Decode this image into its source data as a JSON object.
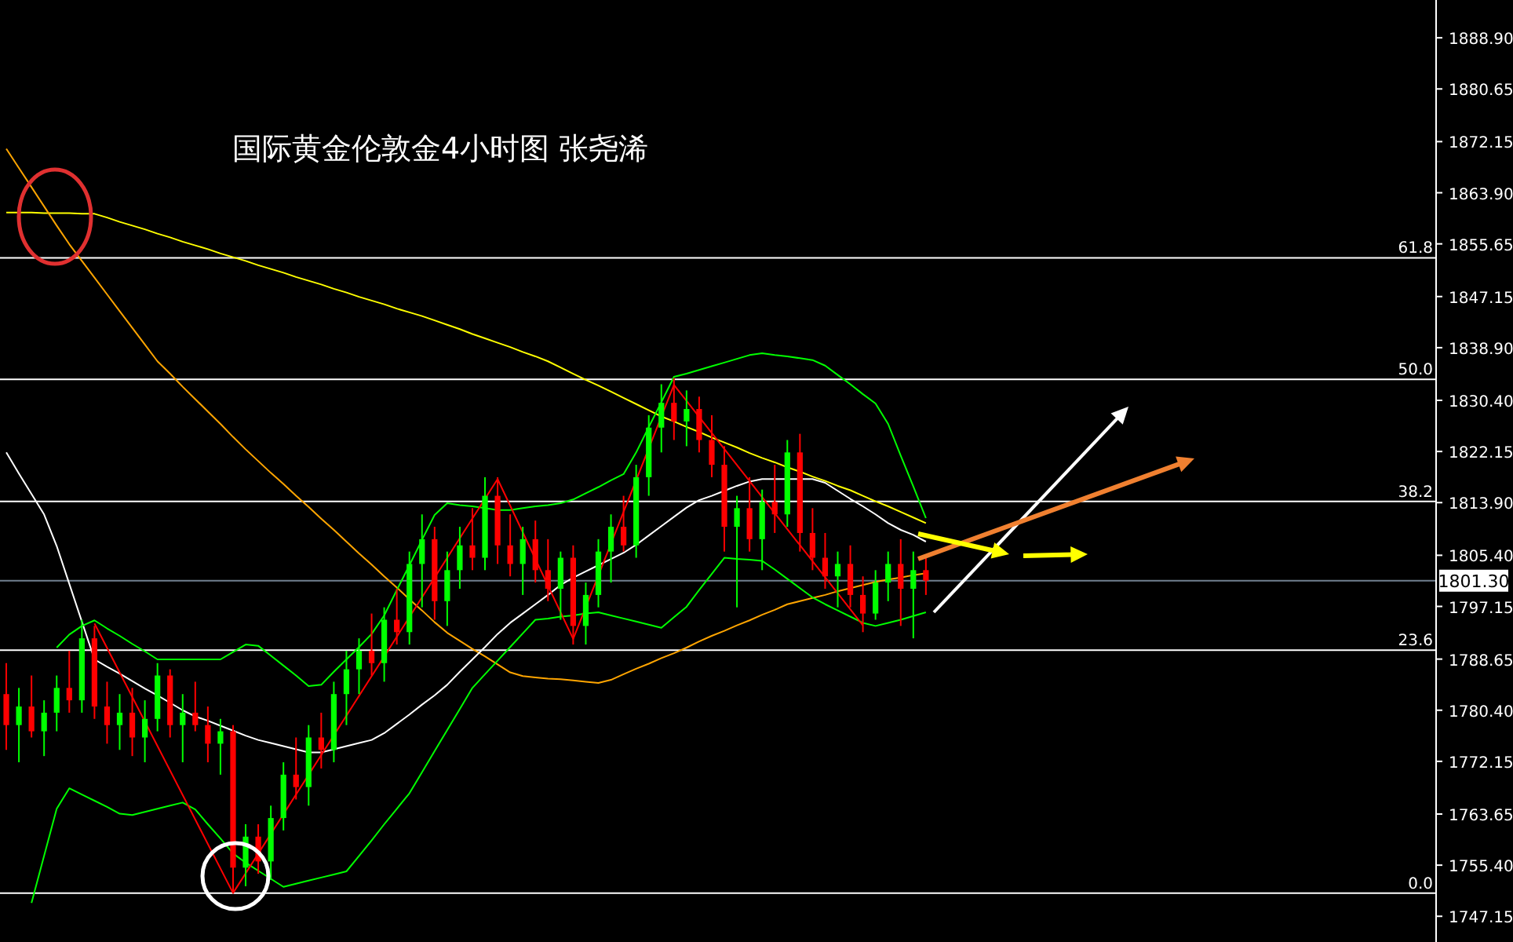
{
  "chart_data": {
    "type": "candlestick",
    "title": "国际黄金伦敦金4小时图  张尧浠",
    "categories": [
      null,
      null,
      null,
      null,
      null,
      null,
      null,
      null,
      null,
      null,
      null,
      null,
      null,
      null,
      null,
      null,
      null,
      null,
      null,
      null,
      null,
      null,
      null,
      null,
      null,
      null,
      null,
      null,
      null,
      null,
      null,
      null,
      null,
      null,
      null,
      null,
      null,
      null,
      null,
      null,
      null,
      null,
      null,
      null,
      null,
      null,
      null,
      null,
      null,
      null,
      null,
      null,
      null,
      null,
      null,
      null,
      null,
      null,
      null,
      null,
      null,
      null,
      null,
      null,
      null,
      null,
      null,
      null,
      null,
      null,
      null,
      null,
      null,
      null,
      null,
      null,
      null,
      null,
      null,
      null,
      null,
      null,
      null,
      null,
      null,
      null,
      null,
      null,
      null,
      null,
      null,
      null,
      null,
      null,
      null,
      null,
      null,
      null,
      null,
      null,
      null,
      null,
      null,
      null,
      null,
      null,
      null,
      null,
      null,
      null,
      null,
      null,
      null,
      null
    ],
    "ohlc": [
      [
        1783,
        1788,
        1774,
        1778
      ],
      [
        1778,
        1784,
        1772,
        1781
      ],
      [
        1781,
        1786,
        1776,
        1777
      ],
      [
        1777,
        1782,
        1773,
        1780
      ],
      [
        1780,
        1786,
        1777,
        1784
      ],
      [
        1784,
        1790,
        1780,
        1782
      ],
      [
        1782,
        1795,
        1780,
        1792
      ],
      [
        1792,
        1794,
        1779,
        1781
      ],
      [
        1781,
        1785,
        1775,
        1778
      ],
      [
        1778,
        1783,
        1774,
        1780
      ],
      [
        1780,
        1784,
        1773,
        1776
      ],
      [
        1776,
        1782,
        1772,
        1779
      ],
      [
        1779,
        1788,
        1777,
        1786
      ],
      [
        1786,
        1787,
        1776,
        1778
      ],
      [
        1778,
        1783,
        1772,
        1780
      ],
      [
        1780,
        1785,
        1777,
        1778
      ],
      [
        1778,
        1781,
        1772,
        1775
      ],
      [
        1775,
        1779,
        1770,
        1777
      ],
      [
        1777,
        1778,
        1751,
        1755
      ],
      [
        1755,
        1762,
        1752,
        1760
      ],
      [
        1760,
        1762,
        1754,
        1756
      ],
      [
        1756,
        1765,
        1753,
        1763
      ],
      [
        1763,
        1772,
        1761,
        1770
      ],
      [
        1770,
        1776,
        1766,
        1768
      ],
      [
        1768,
        1778,
        1765,
        1776
      ],
      [
        1776,
        1780,
        1771,
        1774
      ],
      [
        1774,
        1785,
        1772,
        1783
      ],
      [
        1783,
        1790,
        1778,
        1787
      ],
      [
        1787,
        1792,
        1783,
        1790
      ],
      [
        1790,
        1796,
        1786,
        1788
      ],
      [
        1788,
        1797,
        1785,
        1795
      ],
      [
        1795,
        1800,
        1791,
        1793
      ],
      [
        1793,
        1806,
        1791,
        1804
      ],
      [
        1804,
        1812,
        1797,
        1808
      ],
      [
        1808,
        1810,
        1795,
        1798
      ],
      [
        1798,
        1806,
        1794,
        1803
      ],
      [
        1803,
        1810,
        1800,
        1807
      ],
      [
        1807,
        1813,
        1803,
        1805
      ],
      [
        1805,
        1818,
        1803,
        1815
      ],
      [
        1815,
        1818,
        1804,
        1807
      ],
      [
        1807,
        1812,
        1802,
        1804
      ],
      [
        1804,
        1810,
        1799,
        1808
      ],
      [
        1808,
        1811,
        1801,
        1803
      ],
      [
        1803,
        1808,
        1798,
        1800
      ],
      [
        1800,
        1806,
        1795,
        1805
      ],
      [
        1805,
        1807,
        1791,
        1794
      ],
      [
        1794,
        1801,
        1791,
        1799
      ],
      [
        1799,
        1808,
        1797,
        1806
      ],
      [
        1806,
        1812,
        1801,
        1810
      ],
      [
        1810,
        1815,
        1806,
        1807
      ],
      [
        1807,
        1820,
        1805,
        1818
      ],
      [
        1818,
        1828,
        1815,
        1826
      ],
      [
        1826,
        1833,
        1822,
        1830
      ],
      [
        1830,
        1834,
        1824,
        1827
      ],
      [
        1827,
        1832,
        1823,
        1829
      ],
      [
        1829,
        1831,
        1822,
        1824
      ],
      [
        1824,
        1828,
        1818,
        1820
      ],
      [
        1820,
        1823,
        1806,
        1810
      ],
      [
        1810,
        1815,
        1797,
        1813
      ],
      [
        1813,
        1818,
        1806,
        1808
      ],
      [
        1808,
        1816,
        1803,
        1814
      ],
      [
        1814,
        1820,
        1809,
        1812
      ],
      [
        1812,
        1824,
        1810,
        1822
      ],
      [
        1822,
        1825,
        1806,
        1809
      ],
      [
        1809,
        1813,
        1803,
        1805
      ],
      [
        1805,
        1809,
        1800,
        1802
      ],
      [
        1802,
        1806,
        1797,
        1804
      ],
      [
        1804,
        1807,
        1797,
        1799
      ],
      [
        1799,
        1802,
        1793,
        1796
      ],
      [
        1796,
        1803,
        1795,
        1801
      ],
      [
        1801,
        1806,
        1798,
        1804
      ],
      [
        1804,
        1808,
        1794,
        1800
      ],
      [
        1800,
        1806,
        1792,
        1803
      ],
      [
        1803,
        1805,
        1799,
        1801.3
      ],
      null,
      null,
      null,
      null,
      null,
      null,
      null,
      null,
      null,
      null,
      null,
      null,
      null,
      null,
      null,
      null,
      null,
      null,
      null,
      null,
      null,
      null,
      null,
      null,
      null,
      null,
      null,
      null,
      null,
      null,
      null,
      null,
      null,
      null,
      null,
      null,
      null,
      null,
      null,
      null
    ],
    "series": [
      {
        "type": "line",
        "color": "#ffff00",
        "values": [
          1860.7,
          1860.7,
          1860.7,
          1860.6,
          1860.6,
          1860.6,
          1860.5,
          1860.5,
          1859.9,
          1859.2,
          1858.6,
          1858.0,
          1857.3,
          1856.7,
          1856.0,
          1855.4,
          1854.8,
          1854.1,
          1853.5,
          1852.9,
          1852.2,
          1851.6,
          1851.0,
          1850.3,
          1849.7,
          1849.1,
          1848.4,
          1847.8,
          1847.1,
          1846.5,
          1845.9,
          1845.2,
          1844.6,
          1844.0,
          1843.3,
          1842.6,
          1841.9,
          1841.1,
          1840.4,
          1839.7,
          1839.0,
          1838.2,
          1837.5,
          1836.7,
          1835.7,
          1834.7,
          1833.7,
          1832.8,
          1831.8,
          1830.8,
          1829.8,
          1828.8,
          1827.8,
          1827.0,
          1826.1,
          1825.3,
          1824.4,
          1823.6,
          1822.8,
          1821.9,
          1821.1,
          1820.4,
          1819.6,
          1818.9,
          1818.1,
          1817.4,
          1816.6,
          1815.9,
          1815.0,
          1814.1,
          1813.3,
          1812.4,
          1811.5,
          1810.6,
          null,
          null,
          null,
          null,
          null,
          null,
          null,
          null,
          null,
          null,
          null,
          null,
          null,
          null,
          null,
          null,
          null,
          null,
          null,
          null,
          null,
          null,
          null,
          null,
          null,
          null,
          null,
          null,
          null,
          null,
          null,
          null,
          null,
          null,
          null,
          null,
          null,
          null,
          null,
          null
        ]
      },
      {
        "type": "line",
        "color": "#ffa500",
        "values": [
          1871.0,
          1867.9,
          1864.8,
          1861.7,
          1858.6,
          1855.6,
          1852.9,
          1850.2,
          1847.5,
          1844.8,
          1842.1,
          1839.4,
          1836.7,
          1834.7,
          1832.6,
          1830.6,
          1828.6,
          1826.6,
          1824.5,
          1822.5,
          1820.6,
          1818.7,
          1816.9,
          1815.0,
          1813.2,
          1811.3,
          1809.5,
          1807.6,
          1805.7,
          1803.9,
          1802.0,
          1800.2,
          1798.3,
          1796.5,
          1794.6,
          1792.9,
          1791.6,
          1790.3,
          1789.1,
          1787.8,
          1786.5,
          1785.9,
          1785.7,
          1785.5,
          1785.4,
          1785.2,
          1785.0,
          1784.8,
          1785.3,
          1786.2,
          1787.1,
          1787.9,
          1788.8,
          1789.6,
          1790.5,
          1791.5,
          1792.4,
          1793.2,
          1794.1,
          1794.9,
          1795.8,
          1796.6,
          1797.5,
          1798.0,
          1798.5,
          1799.0,
          1799.6,
          1800.1,
          1800.6,
          1801.1,
          1801.5,
          1801.8,
          1802.2,
          1802.5,
          null,
          null,
          null,
          null,
          null,
          null,
          null,
          null,
          null,
          null,
          null,
          null,
          null,
          null,
          null,
          null,
          null,
          null,
          null,
          null,
          null,
          null,
          null,
          null,
          null,
          null,
          null,
          null,
          null,
          null,
          null,
          null,
          null,
          null,
          null,
          null,
          null,
          null,
          null,
          null
        ]
      },
      {
        "type": "line",
        "color": "#ffffff",
        "values": [
          1822.0,
          1818.6,
          1815.3,
          1812.0,
          1806.9,
          1800.8,
          1794.7,
          1788.6,
          1787.4,
          1786.3,
          1785.1,
          1783.9,
          1782.8,
          1781.6,
          1780.4,
          1779.4,
          1778.7,
          1777.9,
          1777.1,
          1776.3,
          1775.6,
          1775.1,
          1774.6,
          1774.1,
          1773.6,
          1773.6,
          1774.1,
          1774.6,
          1775.1,
          1775.6,
          1776.7,
          1778.2,
          1779.7,
          1781.3,
          1782.8,
          1784.5,
          1786.6,
          1788.6,
          1790.6,
          1792.7,
          1794.5,
          1796.0,
          1797.5,
          1799.0,
          1800.6,
          1801.8,
          1802.8,
          1803.8,
          1804.8,
          1805.8,
          1807.1,
          1808.6,
          1810.1,
          1811.6,
          1813.1,
          1814.3,
          1815.0,
          1815.8,
          1816.6,
          1817.3,
          1817.7,
          1817.7,
          1817.7,
          1817.7,
          1817.7,
          1817.1,
          1815.8,
          1814.5,
          1813.3,
          1812.0,
          1810.6,
          1809.5,
          1808.7,
          1807.6,
          null,
          null,
          null,
          null,
          null,
          null,
          null,
          null,
          null,
          null,
          null,
          null,
          null,
          null,
          null,
          null,
          null,
          null,
          null,
          null,
          null,
          null,
          null,
          null,
          null,
          null,
          null,
          null,
          null,
          null,
          null,
          null,
          null,
          null,
          null,
          null,
          null,
          null,
          null,
          null
        ]
      },
      {
        "type": "line",
        "color": "#00ff00",
        "values": [
          null,
          null,
          null,
          null,
          1790.5,
          1792.6,
          1794.0,
          1794.9,
          1793.6,
          1792.4,
          1791.1,
          1789.9,
          1788.6,
          1788.6,
          1788.6,
          1788.6,
          1788.6,
          1788.6,
          1789.8,
          1791.0,
          1790.8,
          1789.2,
          1787.6,
          1786.0,
          1784.3,
          1784.5,
          1786.6,
          1788.6,
          1790.6,
          1792.7,
          1795.7,
          1799.8,
          1803.8,
          1807.9,
          1811.9,
          1813.8,
          1813.5,
          1813.3,
          1813.0,
          1812.7,
          1812.7,
          1813.0,
          1813.3,
          1813.5,
          1813.8,
          1814.4,
          1815.4,
          1816.4,
          1817.5,
          1818.5,
          1822.0,
          1826.1,
          1830.1,
          1834.2,
          1834.7,
          1835.3,
          1835.9,
          1836.5,
          1837.1,
          1837.7,
          1838.0,
          1837.7,
          1837.5,
          1837.2,
          1836.9,
          1836.0,
          1834.5,
          1833.0,
          1831.4,
          1829.9,
          1826.6,
          1821.5,
          1816.5,
          1811.4,
          null,
          null,
          null,
          null,
          null,
          null,
          null,
          null,
          null,
          null,
          null,
          null,
          null,
          null,
          null,
          null,
          null,
          null,
          null,
          null,
          null,
          null,
          null,
          null,
          null,
          null,
          null,
          null,
          null,
          null,
          null,
          null,
          null,
          null,
          null,
          null,
          null,
          null,
          null,
          null
        ]
      },
      {
        "type": "line",
        "color": "#00ff00",
        "values": [
          null,
          null,
          1749.3,
          1756.9,
          1764.5,
          1767.8,
          1766.8,
          1765.8,
          1764.8,
          1763.7,
          1763.5,
          1764.0,
          1764.5,
          1765.0,
          1765.5,
          1764.4,
          1762.0,
          1759.7,
          1757.3,
          1755.8,
          1754.5,
          1753.2,
          1751.9,
          1752.4,
          1752.9,
          1753.4,
          1753.9,
          1754.4,
          1756.9,
          1759.4,
          1762.0,
          1764.5,
          1767.0,
          1770.4,
          1773.8,
          1777.2,
          1780.6,
          1784.0,
          1786.2,
          1788.4,
          1790.6,
          1792.8,
          1795.0,
          1795.2,
          1795.5,
          1795.7,
          1796.0,
          1796.2,
          1795.7,
          1795.2,
          1794.7,
          1794.2,
          1793.7,
          1795.4,
          1797.1,
          1799.8,
          1802.4,
          1805.0,
          1804.8,
          1804.7,
          1804.5,
          1803.1,
          1801.6,
          1800.1,
          1798.6,
          1797.5,
          1796.5,
          1795.5,
          1794.5,
          1794.0,
          1794.5,
          1795.0,
          1795.6,
          1796.2,
          null,
          null,
          null,
          null,
          null,
          null,
          null,
          null,
          null,
          null,
          null,
          null,
          null,
          null,
          null,
          null,
          null,
          null,
          null,
          null,
          null,
          null,
          null,
          null,
          null,
          null,
          null,
          null,
          null,
          null,
          null,
          null,
          null,
          null,
          null,
          null,
          null,
          null,
          null,
          null
        ]
      },
      {
        "type": "line",
        "color": "#ff0000",
        "values": [
          null,
          null,
          null,
          null,
          null,
          null,
          null,
          1794.4,
          null,
          null,
          null,
          null,
          null,
          null,
          null,
          null,
          null,
          null,
          1750.9,
          null,
          null,
          null,
          null,
          null,
          null,
          null,
          null,
          null,
          null,
          null,
          null,
          null,
          null,
          null,
          null,
          null,
          null,
          null,
          null,
          1817.7,
          null,
          null,
          null,
          null,
          null,
          1791.9,
          null,
          null,
          null,
          null,
          null,
          null,
          null,
          1832.9,
          null,
          null,
          null,
          null,
          null,
          null,
          null,
          null,
          null,
          null,
          null,
          null,
          null,
          null,
          1794.1,
          null,
          null,
          null,
          null,
          null,
          null,
          null,
          null,
          null,
          null,
          null,
          null,
          null,
          null,
          null,
          null,
          null,
          null,
          null,
          null,
          null,
          null,
          null,
          null,
          null,
          null,
          null,
          null,
          null,
          null,
          null,
          null,
          null,
          null,
          null,
          null,
          null,
          null,
          null,
          null,
          null,
          null,
          null,
          null,
          null
        ]
      }
    ],
    "ylim": [
      1743.0,
      1895.0
    ],
    "yticks": [
      {
        "value": 1888.9,
        "label": "1888.90"
      },
      {
        "value": 1880.65,
        "label": "1880.65"
      },
      {
        "value": 1872.15,
        "label": "1872.15"
      },
      {
        "value": 1863.9,
        "label": "1863.90"
      },
      {
        "value": 1855.65,
        "label": "1855.65"
      },
      {
        "value": 1847.15,
        "label": "1847.15"
      },
      {
        "value": 1838.9,
        "label": "1838.90"
      },
      {
        "value": 1830.4,
        "label": "1830.40"
      },
      {
        "value": 1822.15,
        "label": "1822.15"
      },
      {
        "value": 1813.9,
        "label": "1813.90"
      },
      {
        "value": 1805.4,
        "label": "1805.40"
      },
      {
        "value": 1797.15,
        "label": "1797.15"
      },
      {
        "value": 1788.65,
        "label": "1788.65"
      },
      {
        "value": 1780.4,
        "label": "1780.40"
      },
      {
        "value": 1772.15,
        "label": "1772.15"
      },
      {
        "value": 1763.65,
        "label": "1763.65"
      },
      {
        "value": 1755.4,
        "label": "1755.40"
      },
      {
        "value": 1747.15,
        "label": "1747.15"
      }
    ],
    "tick_labels": "y",
    "ref_lines": [
      {
        "axis": "y",
        "value": 1853.4,
        "color": "#ffffff"
      },
      {
        "axis": "y",
        "value": 1833.8,
        "color": "#ffffff"
      },
      {
        "axis": "y",
        "value": 1814.1,
        "color": "#ffffff"
      },
      {
        "axis": "y",
        "value": 1790.1,
        "color": "#ffffff"
      },
      {
        "axis": "y",
        "value": 1750.9,
        "color": "#ffffff"
      },
      {
        "axis": "y",
        "value": 1801.3,
        "label": "1801.30",
        "color": "#708090"
      }
    ],
    "annotations": [
      {
        "text": "61.8",
        "y": 1853.4
      },
      {
        "text": "50.0",
        "y": 1833.8
      },
      {
        "text": "38.2",
        "y": 1814.1
      },
      {
        "text": "23.6",
        "y": 1790.1
      },
      {
        "text": "0.0",
        "y": 1750.9
      }
    ]
  }
}
